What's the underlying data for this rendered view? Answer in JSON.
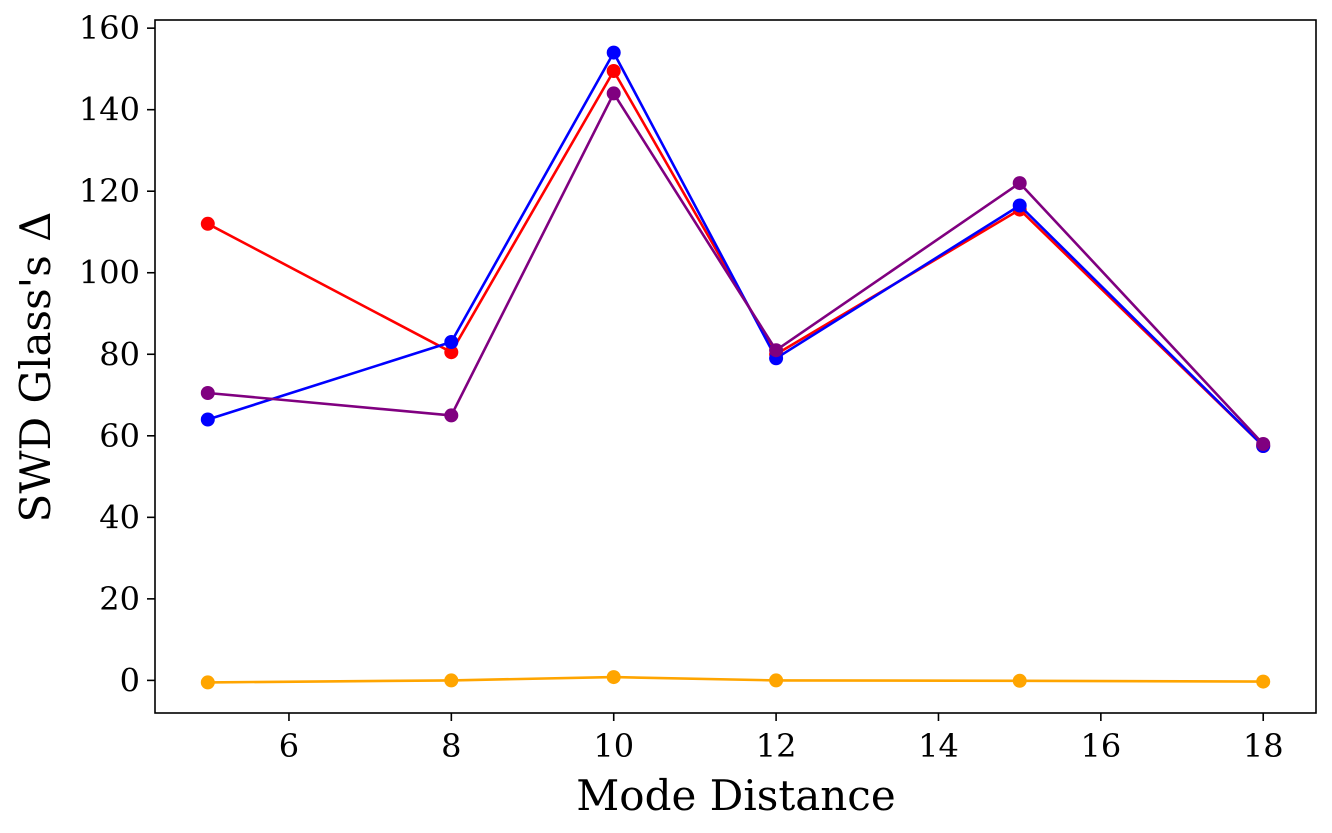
{
  "chart_data": {
    "type": "line",
    "title": "",
    "xlabel": "Mode Distance",
    "ylabel": "SWD Glass's Δ",
    "x": [
      5,
      8,
      10,
      12,
      15,
      18
    ],
    "xlim": [
      4.35,
      18.65
    ],
    "ylim": [
      -8,
      162
    ],
    "xticks": [
      6,
      8,
      10,
      12,
      14,
      16,
      18
    ],
    "yticks": [
      0,
      20,
      40,
      60,
      80,
      100,
      120,
      140,
      160
    ],
    "grid": false,
    "series": [
      {
        "color": "#FFA500",
        "values": [
          -0.5,
          0.0,
          0.8,
          0.0,
          -0.1,
          -0.3
        ]
      },
      {
        "color": "#FF0000",
        "values": [
          112,
          80.5,
          149.5,
          80,
          115.5,
          57.5
        ]
      },
      {
        "color": "#0000FF",
        "values": [
          64,
          83,
          154,
          79,
          116.5,
          57.5
        ]
      },
      {
        "color": "#800080",
        "values": [
          70.5,
          65,
          144,
          81,
          122,
          58
        ]
      }
    ]
  }
}
